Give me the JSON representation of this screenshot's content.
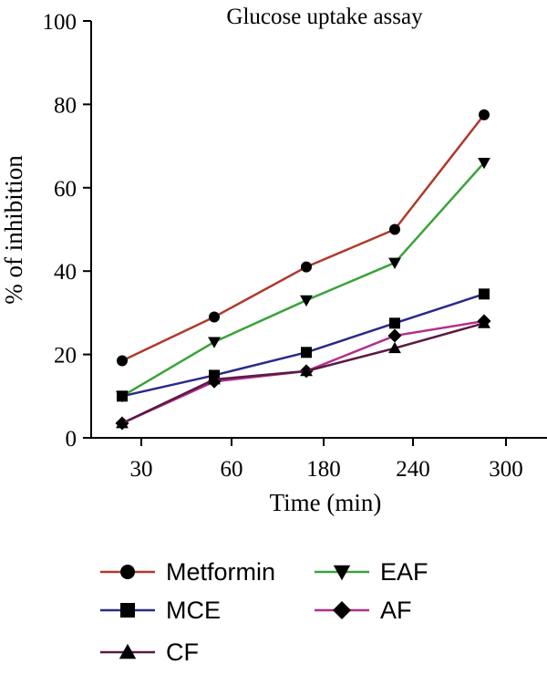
{
  "chart_data": {
    "type": "line",
    "title": "Glucose uptake assay",
    "xlabel": "Time (min)",
    "ylabel": "% of inhibition",
    "categories": [
      "30",
      "60",
      "180",
      "240",
      "300"
    ],
    "ylim": [
      0,
      100
    ],
    "yticks": [
      0,
      20,
      40,
      60,
      80,
      100
    ],
    "grid": false,
    "legend_position": "bottom",
    "series": [
      {
        "name": "Metformin",
        "marker": "circle",
        "color": "#b03a2e",
        "values": [
          18.5,
          29,
          41,
          50,
          77.5
        ]
      },
      {
        "name": "EAF",
        "marker": "triangle-down",
        "color": "#3aa33a",
        "values": [
          10,
          23,
          33,
          42,
          66
        ]
      },
      {
        "name": "MCE",
        "marker": "square",
        "color": "#2a2a8a",
        "values": [
          10,
          15,
          20.5,
          27.5,
          34.5
        ]
      },
      {
        "name": "AF",
        "marker": "diamond",
        "color": "#b0308a",
        "values": [
          3.5,
          13.5,
          16,
          24.5,
          28
        ]
      },
      {
        "name": "CF",
        "marker": "triangle-up",
        "color": "#5a1a45",
        "values": [
          3.5,
          14,
          16,
          21.5,
          27.5
        ]
      }
    ]
  }
}
